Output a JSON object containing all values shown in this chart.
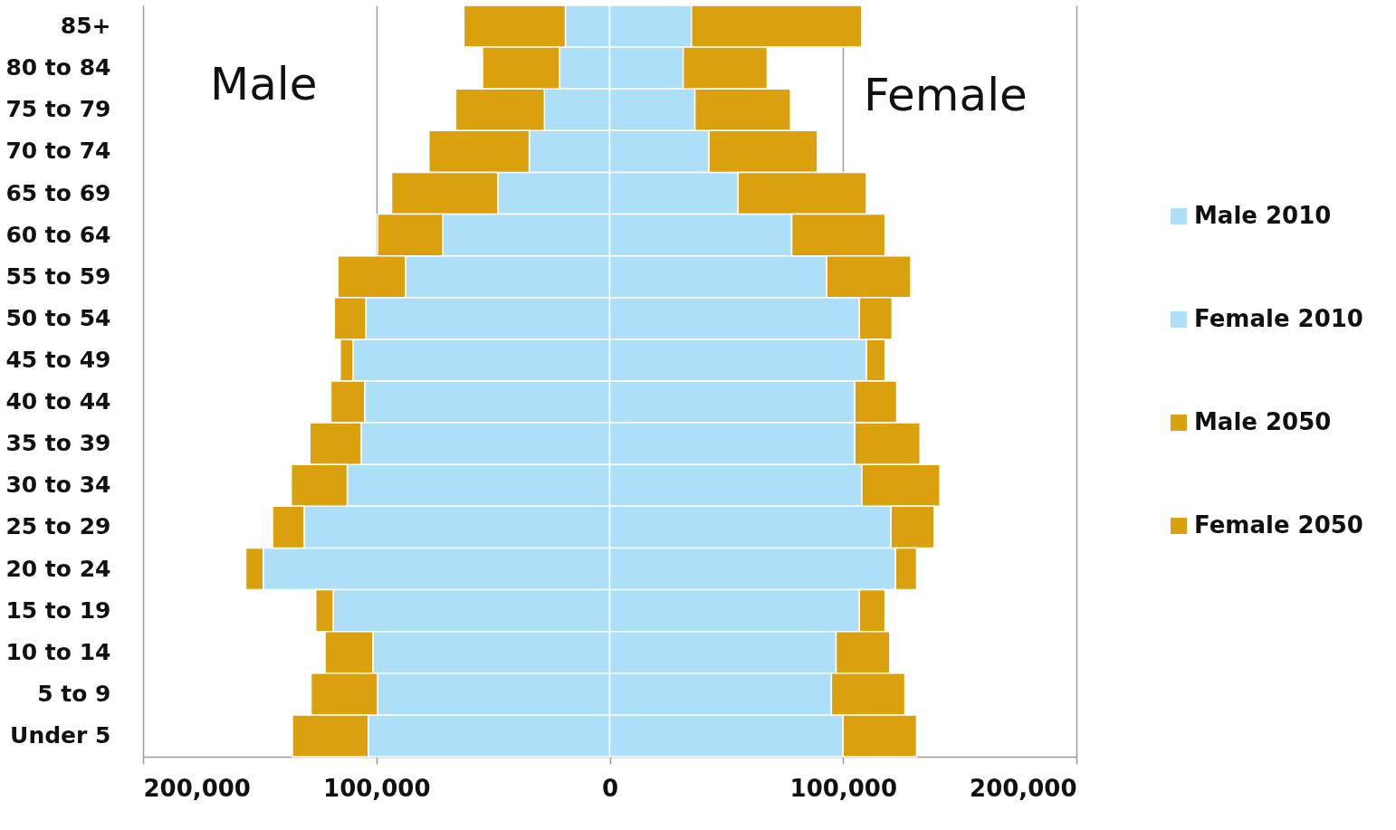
{
  "chart_data": {
    "type": "bar",
    "orientation": "horizontal",
    "stacked": true,
    "categories": [
      "85+",
      "80 to 84",
      "75 to 79",
      "70 to 74",
      "65 to 69",
      "60 to 64",
      "55 to 59",
      "50 to 54",
      "45 to 49",
      "40 to 44",
      "35 to 39",
      "30 to 34",
      "25 to 29",
      "20 to 24",
      "15 to 19",
      "10 to 14",
      "5 to 9",
      "Under 5"
    ],
    "series": [
      {
        "name": "Male 2010",
        "color": "#addff9",
        "values": [
          -19000,
          -21500,
          -28000,
          -34500,
          -48000,
          -71500,
          -87500,
          -104500,
          -110000,
          -105000,
          -106500,
          -112500,
          -131000,
          -148500,
          -118500,
          -101500,
          -99500,
          -103500
        ]
      },
      {
        "name": "Female 2010",
        "color": "#addff9",
        "values": [
          35000,
          31500,
          36500,
          42500,
          55000,
          78000,
          93000,
          107000,
          110000,
          105000,
          105000,
          108000,
          120500,
          122500,
          107000,
          97000,
          95000,
          100000
        ]
      },
      {
        "name": "Male 2050",
        "color": "#dba00e",
        "values": [
          -43500,
          -33000,
          -38000,
          -43000,
          -45500,
          -28000,
          -29000,
          -13500,
          -5500,
          -14500,
          -22000,
          -24000,
          -13500,
          -7500,
          -7500,
          -20500,
          -28500,
          -32500
        ]
      },
      {
        "name": "Female 2050",
        "color": "#dba00e",
        "values": [
          73000,
          36000,
          41000,
          46500,
          55000,
          40000,
          36000,
          14000,
          8000,
          18000,
          28000,
          33500,
          18500,
          9000,
          11000,
          23000,
          31500,
          31500
        ]
      }
    ],
    "xlim": [
      -200000,
      200000
    ],
    "xticks": [
      {
        "value": -200000,
        "label": "200,000"
      },
      {
        "value": -100000,
        "label": "100,000"
      },
      0,
      {
        "value": 100000,
        "label": "100,000"
      },
      {
        "value": 200000,
        "label": "200,000"
      }
    ],
    "grid": "x",
    "legend": "right",
    "annotations": [
      "Male",
      "Female"
    ]
  }
}
